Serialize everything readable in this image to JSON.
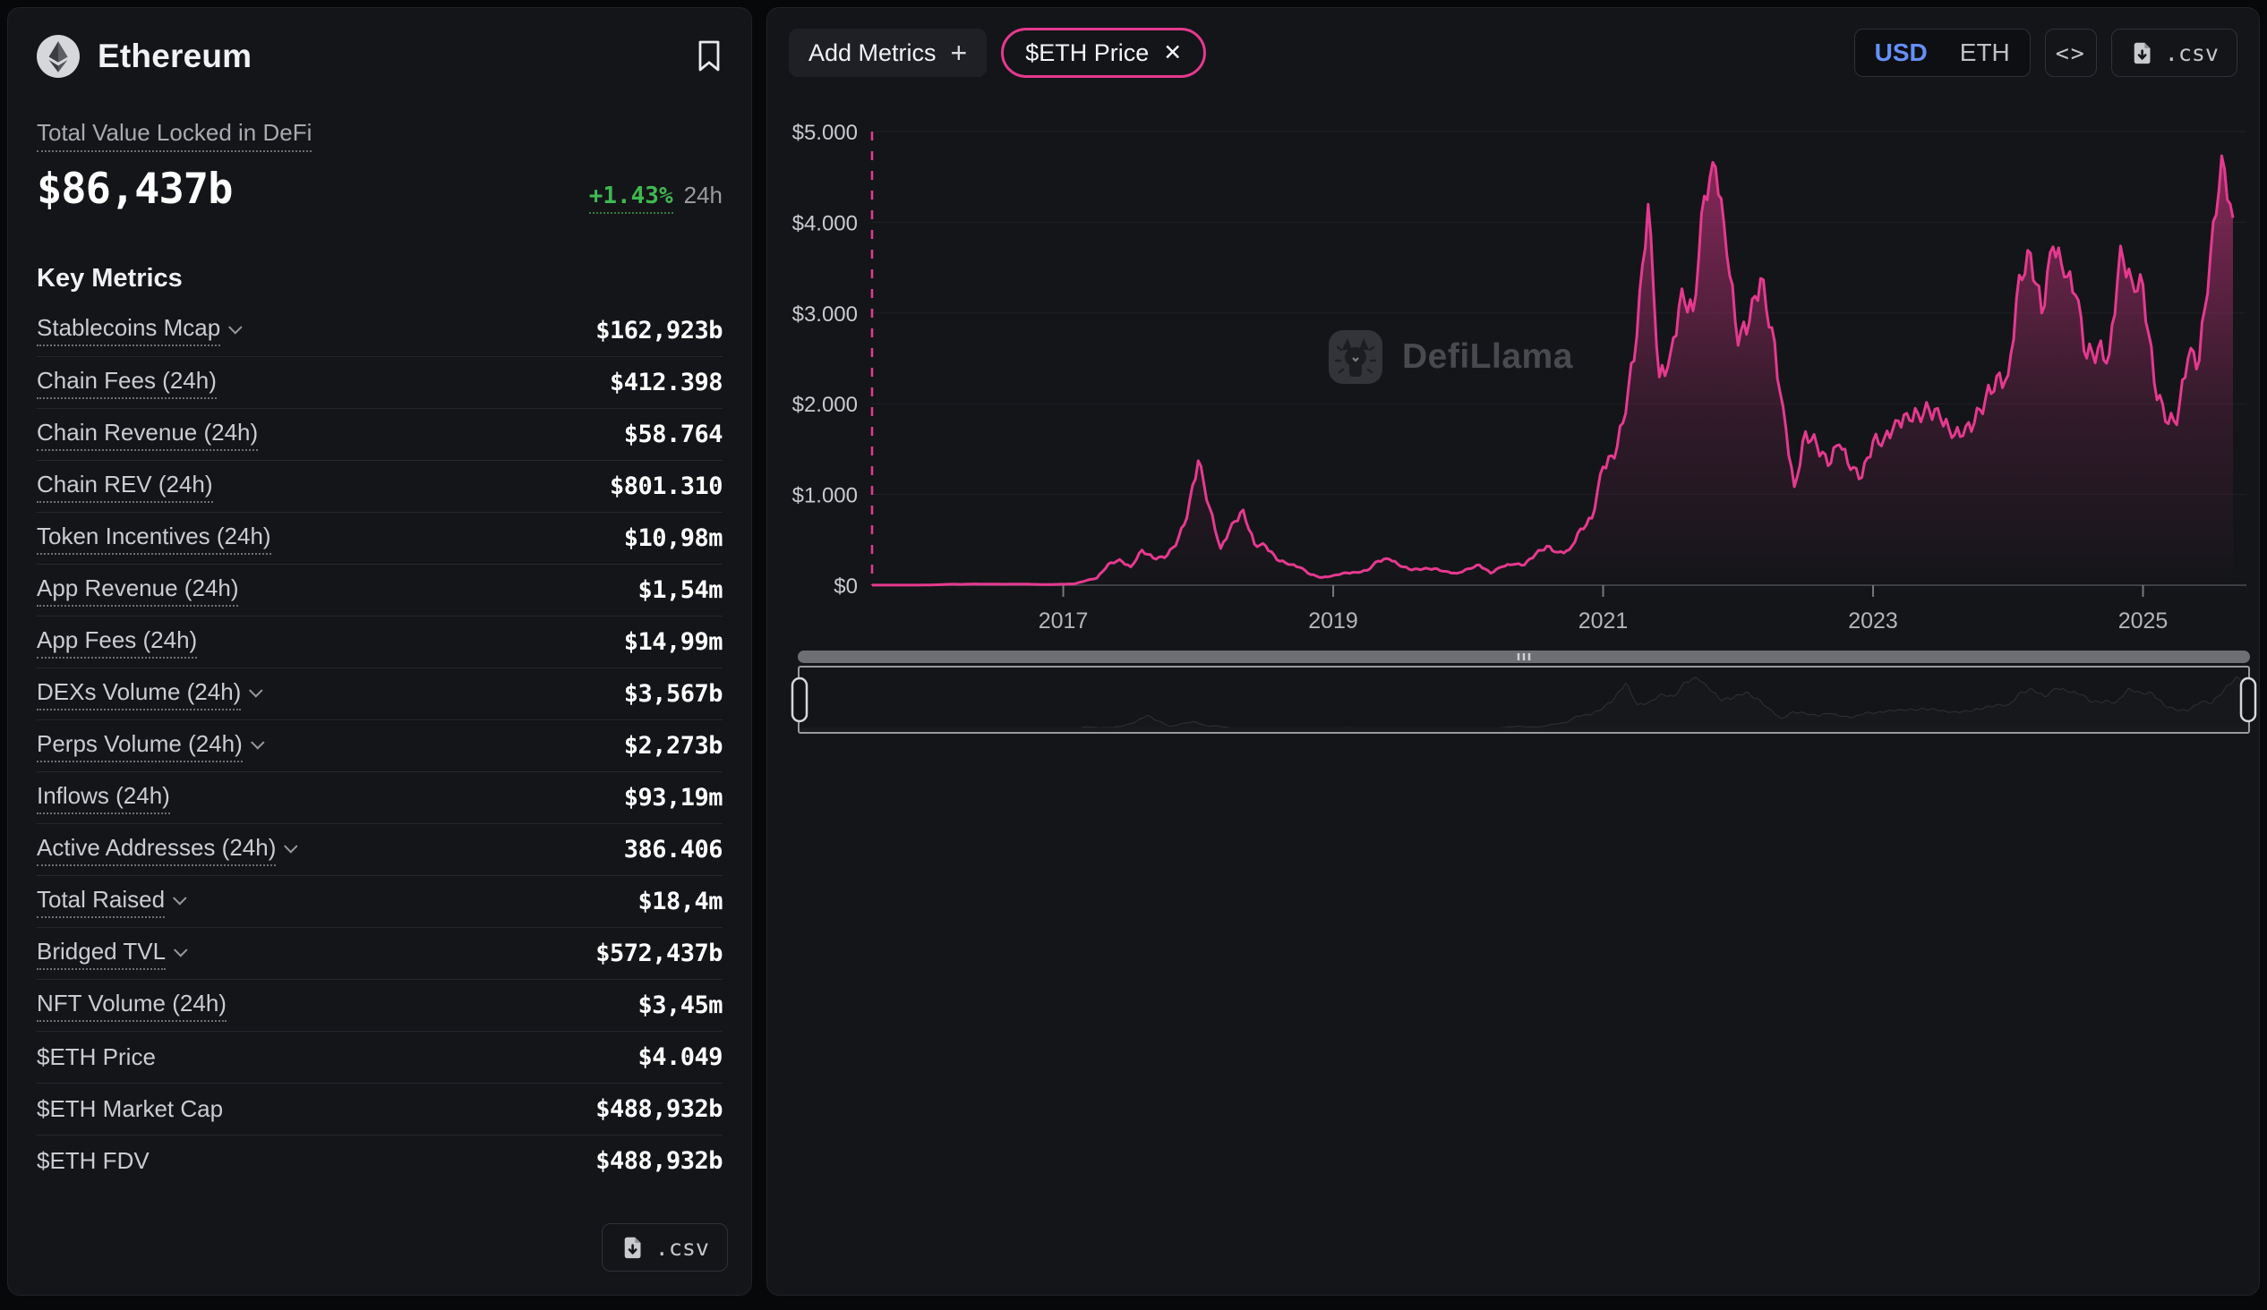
{
  "sidebar": {
    "title": "Ethereum",
    "tvl_label": "Total Value Locked in DeFi",
    "tvl_value": "$86,437b",
    "tvl_change": "+1.43%",
    "tvl_change_period": "24h",
    "key_metrics_title": "Key Metrics",
    "metrics": [
      {
        "label": "Stablecoins Mcap",
        "value": "$162,923b",
        "chevron": true
      },
      {
        "label": "Chain Fees (24h)",
        "value": "$412.398"
      },
      {
        "label": "Chain Revenue (24h)",
        "value": "$58.764"
      },
      {
        "label": "Chain REV (24h)",
        "value": "$801.310"
      },
      {
        "label": "Token Incentives (24h)",
        "value": "$10,98m"
      },
      {
        "label": "App Revenue (24h)",
        "value": "$1,54m"
      },
      {
        "label": "App Fees (24h)",
        "value": "$14,99m"
      },
      {
        "label": "DEXs Volume (24h)",
        "value": "$3,567b",
        "chevron": true
      },
      {
        "label": "Perps Volume (24h)",
        "value": "$2,273b",
        "chevron": true
      },
      {
        "label": "Inflows (24h)",
        "value": "$93,19m"
      },
      {
        "label": "Active Addresses (24h)",
        "value": "386.406",
        "chevron": true
      },
      {
        "label": "Total Raised",
        "value": "$18,4m",
        "chevron": true
      },
      {
        "label": "Bridged TVL",
        "value": "$572,437b",
        "chevron": true
      },
      {
        "label": "NFT Volume (24h)",
        "value": "$3,45m"
      },
      {
        "label": "$ETH Price",
        "value": "$4.049",
        "plain": true
      },
      {
        "label": "$ETH Market Cap",
        "value": "$488,932b",
        "plain": true
      },
      {
        "label": "$ETH FDV",
        "value": "$488,932b",
        "plain": true
      }
    ],
    "csv_button": ".csv"
  },
  "toolbar": {
    "add_metrics_label": "Add Metrics",
    "selected_metric": "$ETH Price",
    "currency_options": [
      "USD",
      "ETH"
    ],
    "active_currency": "USD",
    "embed_label": "<>",
    "csv_label": ".csv"
  },
  "watermark": "DefiLlama",
  "colors": {
    "accent_pink": "#e6398f",
    "accent_blue": "#6590f8",
    "accent_green": "#3fb950",
    "panel_bg": "#141519"
  },
  "chart_data": {
    "type": "area",
    "title": "$ETH Price",
    "legend": [
      "$ETH Price"
    ],
    "x_start": "2015-08",
    "x_interval": "monthly",
    "x_ticks": [
      "2017",
      "2019",
      "2021",
      "2023",
      "2025"
    ],
    "y_ticks": [
      "$0",
      "$1.000",
      "$2.000",
      "$3.000",
      "$4.000",
      "$5.000"
    ],
    "ylim": [
      0,
      5000
    ],
    "grid": "horizontal-faint",
    "line_color": "#e6398f",
    "monthly_prices": [
      1.3,
      0.9,
      0.9,
      0.9,
      0.9,
      2.5,
      6,
      11,
      9,
      14,
      12,
      12,
      11,
      13,
      11,
      8,
      8,
      11,
      15,
      50,
      80,
      230,
      280,
      200,
      385,
      300,
      305,
      445,
      756,
      1380,
      855,
      400,
      670,
      820,
      450,
      435,
      283,
      233,
      200,
      118,
      84,
      105,
      135,
      140,
      162,
      268,
      290,
      210,
      170,
      180,
      182,
      151,
      129,
      180,
      223,
      133,
      206,
      231,
      225,
      346,
      428,
      359,
      386,
      615,
      737,
      1315,
      1418,
      1920,
      2772,
      4200,
      2275,
      2530,
      3230,
      3000,
      4290,
      4630,
      3680,
      2680,
      2920,
      3380,
      2815,
      1940,
      1070,
      1680,
      1550,
      1330,
      1570,
      1290,
      1195,
      1585,
      1605,
      1790,
      1870,
      1875,
      1935,
      1855,
      1650,
      1670,
      1800,
      2050,
      2280,
      2280,
      3385,
      3645,
      3010,
      3760,
      3435,
      3230,
      2515,
      2600,
      2515,
      3700,
      3335,
      3300,
      2240,
      1825,
      1795,
      2530,
      2485,
      3630,
      4700,
      4049
    ]
  }
}
